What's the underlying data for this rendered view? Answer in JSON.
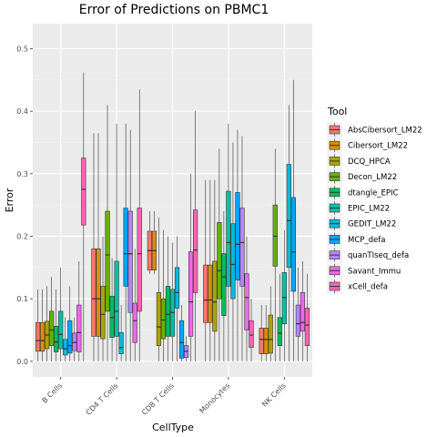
{
  "chart_data": {
    "type": "boxplot",
    "title": "Error of Predictions on PBMC1",
    "xlabel": "CellType",
    "ylabel": "Error",
    "ylim": [
      -0.025,
      0.54
    ],
    "yticks": [
      0.0,
      0.1,
      0.2,
      0.3,
      0.4,
      0.5
    ],
    "ytick_labels": [
      "0.0",
      "0.1",
      "0.2",
      "0.3",
      "0.4",
      "0.5"
    ],
    "grid": true,
    "legend_position": "right",
    "legend_title": "Tool",
    "categories": [
      "B Cells",
      "CD4 T Cells",
      "CD8 T Cells",
      "Monocytes",
      "NK Cells"
    ],
    "series": [
      {
        "name": "AbsCibersort_LM22",
        "color": "#F8766D",
        "boxes": [
          {
            "min": 0.0,
            "q1": 0.016,
            "median": 0.033,
            "q3": 0.062,
            "max": 0.115
          },
          {
            "min": 0.0,
            "q1": 0.04,
            "median": 0.1,
            "q3": 0.18,
            "max": 0.365
          },
          {
            "min": 0.14,
            "q1": 0.146,
            "median": 0.177,
            "q3": 0.208,
            "max": 0.24
          },
          {
            "min": 0.0,
            "q1": 0.062,
            "median": 0.098,
            "q3": 0.154,
            "max": 0.29
          },
          {
            "min": 0.0,
            "q1": 0.012,
            "median": 0.035,
            "q3": 0.053,
            "max": 0.09
          }
        ]
      },
      {
        "name": "Cibersort_LM22",
        "color": "#DB8E00",
        "boxes": [
          {
            "min": 0.0,
            "q1": 0.016,
            "median": 0.033,
            "q3": 0.062,
            "max": 0.115
          },
          {
            "min": 0.0,
            "q1": 0.04,
            "median": 0.1,
            "q3": 0.18,
            "max": 0.365
          },
          {
            "min": 0.14,
            "q1": 0.146,
            "median": 0.177,
            "q3": 0.208,
            "max": 0.24
          },
          {
            "min": 0.0,
            "q1": 0.062,
            "median": 0.098,
            "q3": 0.154,
            "max": 0.29
          },
          {
            "min": 0.0,
            "q1": 0.012,
            "median": 0.035,
            "q3": 0.053,
            "max": 0.09
          }
        ]
      },
      {
        "name": "DCQ_HPCA",
        "color": "#AEA200",
        "boxes": [
          {
            "min": 0.0,
            "q1": 0.02,
            "median": 0.042,
            "q3": 0.064,
            "max": 0.12
          },
          {
            "min": 0.0,
            "q1": 0.036,
            "median": 0.075,
            "q3": 0.12,
            "max": 0.2
          },
          {
            "min": 0.0,
            "q1": 0.025,
            "median": 0.055,
            "q3": 0.11,
            "max": 0.23
          },
          {
            "min": 0.0,
            "q1": 0.048,
            "median": 0.095,
            "q3": 0.16,
            "max": 0.29
          },
          {
            "min": 0.0,
            "q1": 0.013,
            "median": 0.035,
            "q3": 0.074,
            "max": 0.12
          }
        ]
      },
      {
        "name": "Decon_LM22",
        "color": "#64B200",
        "boxes": [
          {
            "min": 0.0,
            "q1": 0.025,
            "median": 0.05,
            "q3": 0.08,
            "max": 0.135
          },
          {
            "min": 0.0,
            "q1": 0.08,
            "median": 0.17,
            "q3": 0.24,
            "max": 0.41
          },
          {
            "min": 0.0,
            "q1": 0.036,
            "median": 0.066,
            "q3": 0.1,
            "max": 0.21
          },
          {
            "min": 0.0,
            "q1": 0.1,
            "median": 0.145,
            "q3": 0.222,
            "max": 0.34
          },
          {
            "min": 0.0,
            "q1": 0.152,
            "median": 0.2,
            "q3": 0.25,
            "max": 0.34
          }
        ]
      },
      {
        "name": "dtangle_EPIC",
        "color": "#00BD5C",
        "boxes": [
          {
            "min": 0.0,
            "q1": 0.015,
            "median": 0.031,
            "q3": 0.056,
            "max": 0.115
          },
          {
            "min": 0.0,
            "q1": 0.038,
            "median": 0.07,
            "q3": 0.104,
            "max": 0.165
          },
          {
            "min": 0.0,
            "q1": 0.04,
            "median": 0.075,
            "q3": 0.12,
            "max": 0.2
          },
          {
            "min": 0.0,
            "q1": 0.073,
            "median": 0.135,
            "q3": 0.172,
            "max": 0.24
          },
          {
            "min": 0.0,
            "q1": 0.025,
            "median": 0.045,
            "q3": 0.07,
            "max": 0.14
          }
        ]
      },
      {
        "name": "EPIC_LM22",
        "color": "#00C1A7",
        "boxes": [
          {
            "min": 0.0,
            "q1": 0.02,
            "median": 0.043,
            "q3": 0.08,
            "max": 0.15
          },
          {
            "min": 0.0,
            "q1": 0.04,
            "median": 0.08,
            "q3": 0.16,
            "max": 0.38
          },
          {
            "min": 0.0,
            "q1": 0.04,
            "median": 0.078,
            "q3": 0.115,
            "max": 0.19
          },
          {
            "min": 0.0,
            "q1": 0.12,
            "median": 0.19,
            "q3": 0.272,
            "max": 0.38
          },
          {
            "min": 0.0,
            "q1": 0.06,
            "median": 0.102,
            "q3": 0.142,
            "max": 0.21
          }
        ]
      },
      {
        "name": "GEDIT_LM22",
        "color": "#00BADE",
        "boxes": [
          {
            "min": 0.0,
            "q1": 0.01,
            "median": 0.02,
            "q3": 0.035,
            "max": 0.07
          },
          {
            "min": 0.0,
            "q1": 0.012,
            "median": 0.022,
            "q3": 0.046,
            "max": 0.09
          },
          {
            "min": 0.0,
            "q1": 0.085,
            "median": 0.11,
            "q3": 0.15,
            "max": 0.2
          },
          {
            "min": 0.0,
            "q1": 0.1,
            "median": 0.155,
            "q3": 0.22,
            "max": 0.35
          },
          {
            "min": 0.0,
            "q1": 0.15,
            "median": 0.225,
            "q3": 0.315,
            "max": 0.41
          }
        ]
      },
      {
        "name": "MCP_defa",
        "color": "#00A6FF",
        "boxes": [
          {
            "min": 0.0,
            "q1": 0.013,
            "median": 0.025,
            "q3": 0.065,
            "max": 0.12
          },
          {
            "min": 0.0,
            "q1": 0.12,
            "median": 0.172,
            "q3": 0.245,
            "max": 0.38
          },
          {
            "min": 0.0,
            "q1": 0.005,
            "median": 0.03,
            "q3": 0.065,
            "max": 0.09
          },
          {
            "min": 0.0,
            "q1": 0.13,
            "median": 0.187,
            "q3": 0.27,
            "max": 0.37
          },
          {
            "min": 0.0,
            "q1": 0.112,
            "median": 0.175,
            "q3": 0.262,
            "max": 0.45
          }
        ]
      },
      {
        "name": "quanTIseq_defa",
        "color": "#B385FF",
        "boxes": [
          {
            "min": 0.0,
            "q1": 0.017,
            "median": 0.03,
            "q3": 0.045,
            "max": 0.07
          },
          {
            "min": 0.0,
            "q1": 0.078,
            "median": 0.172,
            "q3": 0.24,
            "max": 0.37
          },
          {
            "min": 0.0,
            "q1": 0.006,
            "median": 0.016,
            "q3": 0.025,
            "max": 0.04
          },
          {
            "min": 0.0,
            "q1": 0.12,
            "median": 0.19,
            "q3": 0.245,
            "max": 0.36
          },
          {
            "min": 0.0,
            "q1": 0.04,
            "median": 0.06,
            "q3": 0.09,
            "max": 0.15
          }
        ]
      },
      {
        "name": "Savant_Immu",
        "color": "#EF67EB",
        "boxes": [
          {
            "min": 0.0,
            "q1": 0.015,
            "median": 0.046,
            "q3": 0.09,
            "max": 0.16
          },
          {
            "min": 0.0,
            "q1": 0.03,
            "median": 0.065,
            "q3": 0.093,
            "max": 0.18
          },
          {
            "min": 0.0,
            "q1": 0.04,
            "median": 0.095,
            "q3": 0.175,
            "max": 0.3
          },
          {
            "min": 0.0,
            "q1": 0.05,
            "median": 0.102,
            "q3": 0.14,
            "max": 0.2
          },
          {
            "min": 0.0,
            "q1": 0.048,
            "median": 0.062,
            "q3": 0.11,
            "max": 0.16
          }
        ]
      },
      {
        "name": "xCell_defa",
        "color": "#FF63B6",
        "boxes": [
          {
            "min": 0.0,
            "q1": 0.218,
            "median": 0.275,
            "q3": 0.325,
            "max": 0.462
          },
          {
            "min": 0.0,
            "q1": 0.08,
            "median": 0.172,
            "q3": 0.245,
            "max": 0.435
          },
          {
            "min": 0.0,
            "q1": 0.11,
            "median": 0.178,
            "q3": 0.242,
            "max": 0.4
          },
          {
            "min": 0.0,
            "q1": 0.022,
            "median": 0.042,
            "q3": 0.065,
            "max": 0.1
          },
          {
            "min": 0.0,
            "q1": 0.025,
            "median": 0.058,
            "q3": 0.085,
            "max": 0.14
          }
        ]
      }
    ]
  }
}
